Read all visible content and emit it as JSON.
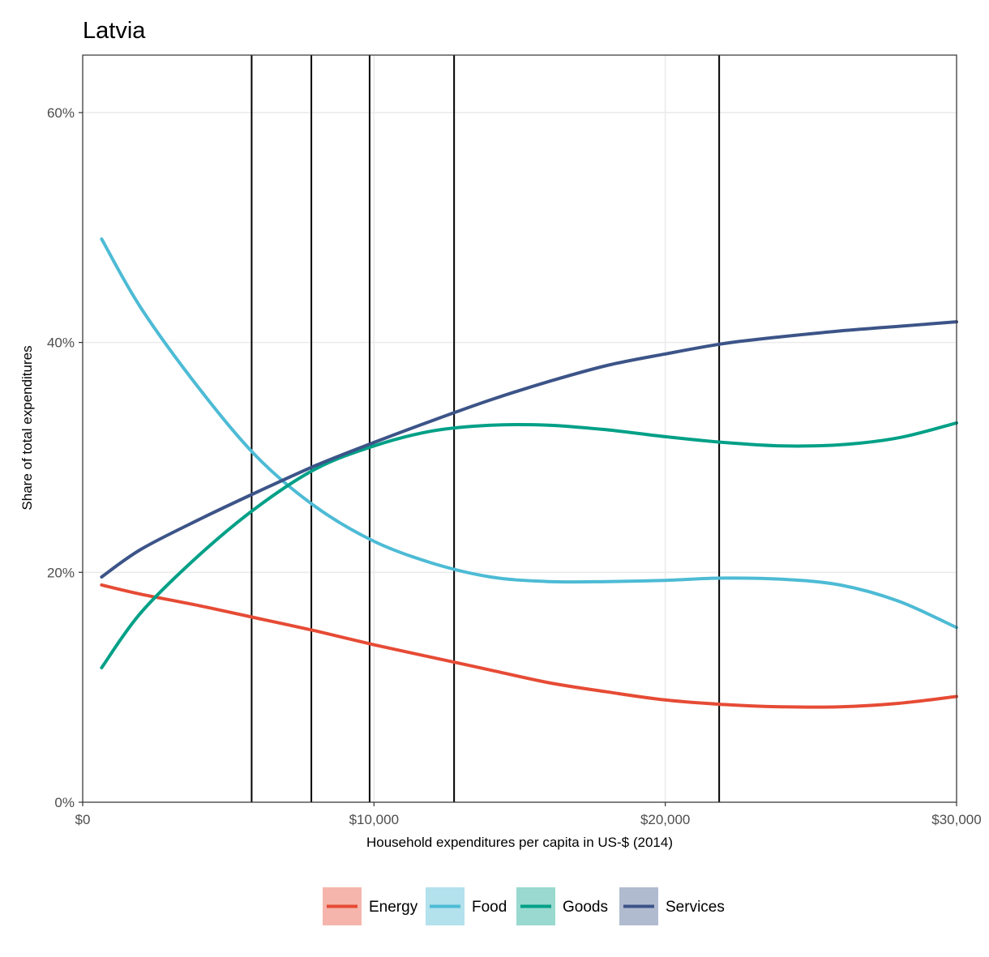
{
  "chart_data": {
    "type": "line",
    "title": "Latvia",
    "xlabel": "Household expenditures per capita in US-$ (2014)",
    "ylabel": "Share of total expenditures",
    "xlim": [
      0,
      30000
    ],
    "ylim": [
      0,
      65
    ],
    "x_ticks": [
      {
        "value": 0,
        "label": "$0"
      },
      {
        "value": 10000,
        "label": "$10,000"
      },
      {
        "value": 20000,
        "label": "$20,000"
      },
      {
        "value": 30000,
        "label": "$30,000"
      }
    ],
    "y_ticks": [
      {
        "value": 0,
        "label": "0%"
      },
      {
        "value": 20,
        "label": "20%"
      },
      {
        "value": 40,
        "label": "40%"
      },
      {
        "value": 60,
        "label": "60%"
      }
    ],
    "grid": true,
    "legend_position": "bottom",
    "vertical_lines": [
      5800,
      7850,
      9850,
      12750,
      21850
    ],
    "x": [
      650,
      2000,
      4000,
      6000,
      8000,
      10000,
      12000,
      14000,
      16000,
      18000,
      20000,
      22000,
      24000,
      26000,
      28000,
      30000
    ],
    "series": [
      {
        "name": "Energy",
        "color": "#E64B35",
        "fill": "#F5B5AC",
        "values": [
          18.9,
          18.1,
          17.1,
          16.0,
          14.9,
          13.7,
          12.6,
          11.5,
          10.4,
          9.6,
          8.9,
          8.5,
          8.3,
          8.3,
          8.6,
          9.2
        ]
      },
      {
        "name": "Food",
        "color": "#4DBBD5",
        "fill": "#B3E1EC",
        "values": [
          49.0,
          43.0,
          36.0,
          30.0,
          25.7,
          22.7,
          20.8,
          19.6,
          19.2,
          19.2,
          19.3,
          19.5,
          19.4,
          18.9,
          17.5,
          15.2
        ]
      },
      {
        "name": "Goods",
        "color": "#00A087",
        "fill": "#99D9CF",
        "values": [
          11.7,
          16.5,
          21.5,
          25.7,
          29.0,
          31.0,
          32.3,
          32.8,
          32.8,
          32.4,
          31.8,
          31.3,
          31.0,
          31.1,
          31.7,
          33.0
        ]
      },
      {
        "name": "Services",
        "color": "#3C5488",
        "fill": "#B1BBCF",
        "values": [
          19.6,
          22.0,
          24.6,
          27.0,
          29.3,
          31.3,
          33.2,
          35.0,
          36.6,
          38.0,
          39.0,
          39.9,
          40.5,
          41.0,
          41.4,
          41.8
        ]
      }
    ]
  }
}
